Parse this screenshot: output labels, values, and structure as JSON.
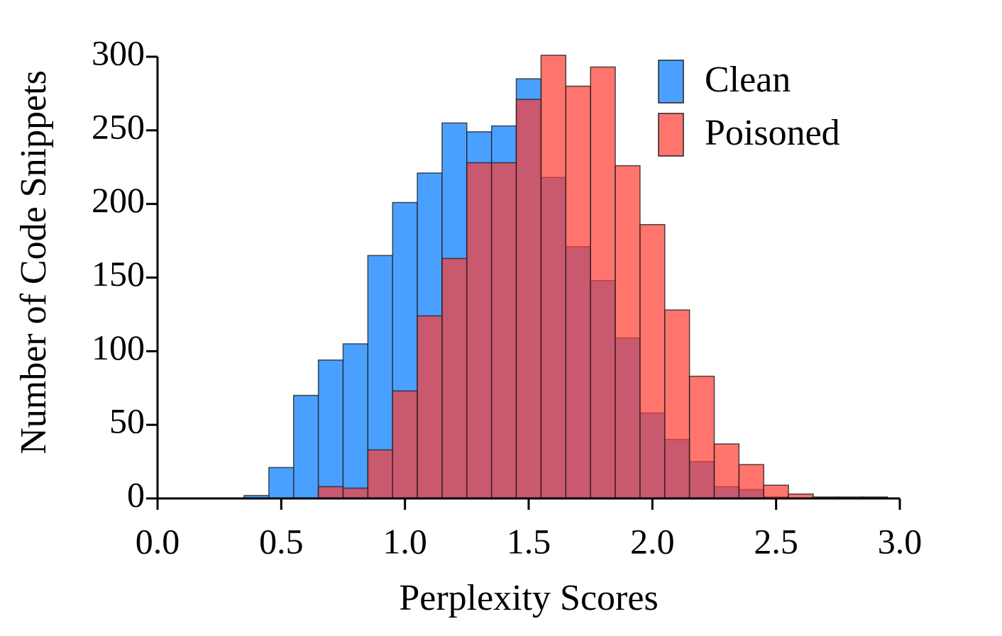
{
  "chart_data": {
    "type": "histogram",
    "xlabel": "Perplexity Scores",
    "ylabel": "Number of Code Snippets",
    "bins": [
      0.35,
      0.45,
      0.55,
      0.65,
      0.75,
      0.85,
      0.95,
      1.05,
      1.15,
      1.25,
      1.35,
      1.45,
      1.55,
      1.65,
      1.75,
      1.85,
      1.95,
      2.05,
      2.15,
      2.25,
      2.35,
      2.45,
      2.55,
      2.65,
      2.75,
      2.85,
      2.95
    ],
    "series": [
      {
        "name": "Clean",
        "color": "#4aa0ff",
        "values": [
          2,
          21,
          70,
          94,
          105,
          165,
          201,
          221,
          255,
          249,
          253,
          285,
          218,
          171,
          148,
          109,
          58,
          40,
          25,
          8,
          6,
          1,
          0,
          0,
          0,
          0
        ]
      },
      {
        "name": "Poisoned",
        "color": "#ff3b30",
        "values": [
          0,
          0,
          0,
          8,
          7,
          33,
          73,
          124,
          163,
          228,
          228,
          271,
          301,
          280,
          293,
          226,
          186,
          128,
          83,
          37,
          23,
          9,
          3,
          1,
          1,
          1
        ]
      }
    ],
    "alpha": 0.7,
    "xlim": [
      0,
      3
    ],
    "xticks": [
      {
        "value": 0,
        "label": "0.0"
      },
      0.5,
      {
        "value": 1,
        "label": "1.0"
      },
      1.5,
      {
        "value": 2,
        "label": "2.0"
      },
      2.5,
      {
        "value": 3,
        "label": "3.0"
      }
    ],
    "ylim": [
      0,
      300
    ],
    "yticks": [
      0,
      50,
      100,
      150,
      200,
      250,
      300
    ],
    "legend": "upper right"
  }
}
